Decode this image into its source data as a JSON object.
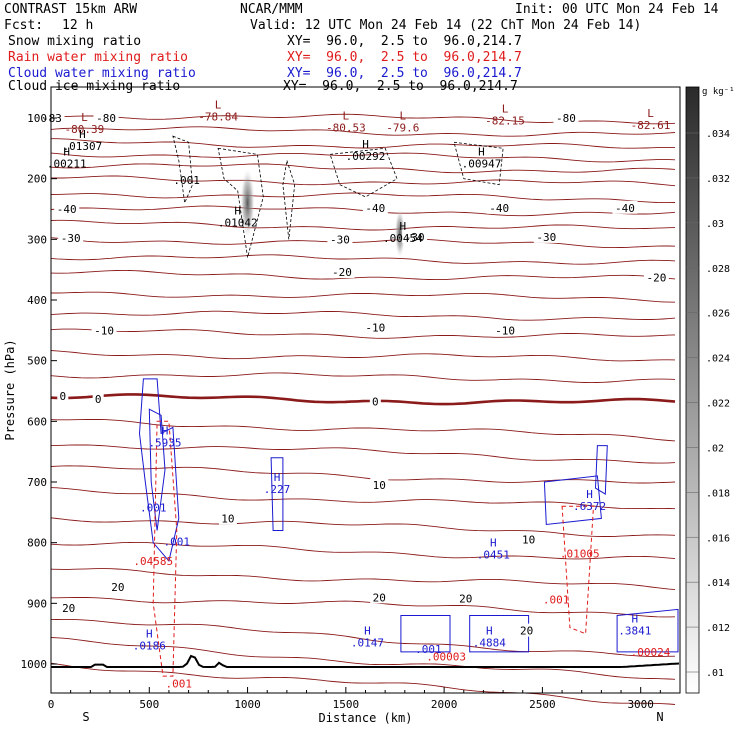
{
  "header": {
    "model": "CONTRAST 15km ARW",
    "org": "NCAR/MMM",
    "init": "Init: 00 UTC Mon 24 Feb 14",
    "fcst_label": "Fcst:",
    "fcst_value": "12 h",
    "valid": "Valid: 12 UTC Mon 24 Feb 14 (22 ChT Mon 24 Feb 14)"
  },
  "fields": [
    {
      "name": "Snow mixing ratio",
      "xy": "XY=  96.0,  2.5 to  96.0,214.7",
      "color": "#000000"
    },
    {
      "name": "Rain water mixing ratio",
      "xy": "XY=  96.0,  2.5 to  96.0,214.7",
      "color": "#e01b1b"
    },
    {
      "name": "Cloud water mixing ratio",
      "xy": "XY=  96.0,  2.5 to  96.0,214.7",
      "color": "#1a1ad0"
    },
    {
      "name": "Cloud ice mixing ratio",
      "xy": "XY=  96.0,  2.5 to  96.0,214.7",
      "color": "#000000"
    }
  ],
  "chart_data": {
    "type": "cross-section contour",
    "xlabel": "Distance (km)",
    "ylabel": "Pressure (hPa)",
    "xlim": [
      0,
      3200
    ],
    "ylim": [
      1050,
      60
    ],
    "x_ticks": [
      0,
      500,
      1000,
      1500,
      2000,
      2500,
      3000
    ],
    "y_ticks": [
      100,
      200,
      300,
      400,
      500,
      600,
      700,
      800,
      900,
      1000
    ],
    "x_end_labels": {
      "left": "S",
      "right": "N"
    },
    "colorbar": {
      "unit": "g kg⁻¹",
      "ticks": [
        ".034",
        ".032",
        ".03",
        ".028",
        ".026",
        ".024",
        ".022",
        ".02",
        ".018",
        ".016",
        ".014",
        ".012",
        ".01"
      ]
    },
    "temperature_labels": [
      {
        "x": 5,
        "p": 100,
        "text": "-83"
      },
      {
        "x": 280,
        "p": 100,
        "text": "-80"
      },
      {
        "x": 2620,
        "p": 100,
        "text": "-80"
      },
      {
        "x": 80,
        "p": 250,
        "text": "-40"
      },
      {
        "x": 1650,
        "p": 248,
        "text": "-40"
      },
      {
        "x": 2280,
        "p": 248,
        "text": "-40"
      },
      {
        "x": 2920,
        "p": 248,
        "text": "-40"
      },
      {
        "x": 100,
        "p": 298,
        "text": "-30"
      },
      {
        "x": 1470,
        "p": 300,
        "text": "-30"
      },
      {
        "x": 1850,
        "p": 296,
        "text": "-30"
      },
      {
        "x": 2520,
        "p": 296,
        "text": "-30"
      },
      {
        "x": 1480,
        "p": 354,
        "text": "-20"
      },
      {
        "x": 3080,
        "p": 363,
        "text": "-20"
      },
      {
        "x": 270,
        "p": 450,
        "text": "-10"
      },
      {
        "x": 1650,
        "p": 445,
        "text": "-10"
      },
      {
        "x": 2310,
        "p": 450,
        "text": "-10"
      },
      {
        "x": 60,
        "p": 558,
        "text": "0"
      },
      {
        "x": 240,
        "p": 563,
        "text": "0"
      },
      {
        "x": 1650,
        "p": 567,
        "text": "0"
      },
      {
        "x": 1670,
        "p": 705,
        "text": "10"
      },
      {
        "x": 900,
        "p": 760,
        "text": "10"
      },
      {
        "x": 2430,
        "p": 795,
        "text": "10"
      },
      {
        "x": 340,
        "p": 873,
        "text": "20"
      },
      {
        "x": 90,
        "p": 908,
        "text": "20"
      },
      {
        "x": 1670,
        "p": 890,
        "text": "20"
      },
      {
        "x": 2110,
        "p": 892,
        "text": "20"
      },
      {
        "x": 2420,
        "p": 945,
        "text": "20"
      }
    ],
    "extrema": [
      {
        "x": 170,
        "p": 108,
        "kind": "L",
        "value": "-80.39",
        "color": "#8b1a1a"
      },
      {
        "x": 850,
        "p": 88,
        "kind": "L",
        "value": "-78.84",
        "color": "#8b1a1a"
      },
      {
        "x": 1500,
        "p": 106,
        "kind": "L",
        "value": "-80.53",
        "color": "#8b1a1a"
      },
      {
        "x": 1790,
        "p": 106,
        "kind": "L",
        "value": "-79.6",
        "color": "#8b1a1a"
      },
      {
        "x": 2310,
        "p": 94,
        "kind": "L",
        "value": "-82.15",
        "color": "#8b1a1a"
      },
      {
        "x": 3050,
        "p": 102,
        "kind": "L",
        "value": "-82.61",
        "color": "#8b1a1a"
      },
      {
        "x": 160,
        "p": 136,
        "kind": "H",
        "value": ".01307",
        "color": "#000000"
      },
      {
        "x": 80,
        "p": 165,
        "kind": "H",
        "value": ".00211",
        "color": "#000000"
      },
      {
        "x": 690,
        "p": 192,
        "kind": "",
        "value": ".001",
        "color": "#000000"
      },
      {
        "x": 950,
        "p": 262,
        "kind": "H",
        "value": ".01042",
        "color": "#000000"
      },
      {
        "x": 1600,
        "p": 153,
        "kind": "H",
        "value": ".00292",
        "color": "#000000"
      },
      {
        "x": 1790,
        "p": 288,
        "kind": "H",
        "value": ".00454",
        "color": "#000000"
      },
      {
        "x": 2190,
        "p": 165,
        "kind": "H",
        "value": ".00947",
        "color": "#000000"
      },
      {
        "x": 580,
        "p": 625,
        "kind": "H",
        "value": ".5935",
        "color": "#1a1ad0"
      },
      {
        "x": 1150,
        "p": 702,
        "kind": "H",
        "value": ".227",
        "color": "#1a1ad0"
      },
      {
        "x": 520,
        "p": 732,
        "kind": "",
        "value": ".001",
        "color": "#1a1ad0"
      },
      {
        "x": 640,
        "p": 788,
        "kind": "",
        "value": ".001",
        "color": "#1a1ad0"
      },
      {
        "x": 520,
        "p": 820,
        "kind": "",
        "value": ".04585",
        "color": "#e01b1b"
      },
      {
        "x": 2250,
        "p": 810,
        "kind": "H",
        "value": ".0451",
        "color": "#1a1ad0"
      },
      {
        "x": 2740,
        "p": 730,
        "kind": "H",
        "value": ".6372",
        "color": "#1a1ad0"
      },
      {
        "x": 2690,
        "p": 808,
        "kind": "",
        "value": ".01005",
        "color": "#e01b1b"
      },
      {
        "x": 2570,
        "p": 884,
        "kind": "",
        "value": ".001",
        "color": "#e01b1b"
      },
      {
        "x": 500,
        "p": 960,
        "kind": "H",
        "value": ".0186",
        "color": "#1a1ad0"
      },
      {
        "x": 1610,
        "p": 955,
        "kind": "H",
        "value": ".0147",
        "color": "#1a1ad0"
      },
      {
        "x": 1920,
        "p": 965,
        "kind": "",
        "value": ".001",
        "color": "#1a1ad0"
      },
      {
        "x": 2010,
        "p": 978,
        "kind": "",
        "value": ".00003",
        "color": "#e01b1b"
      },
      {
        "x": 2230,
        "p": 955,
        "kind": "H",
        "value": ".4884",
        "color": "#1a1ad0"
      },
      {
        "x": 2970,
        "p": 935,
        "kind": "H",
        "value": ".3841",
        "color": "#1a1ad0"
      },
      {
        "x": 3050,
        "p": 970,
        "kind": "",
        "value": ".00024",
        "color": "#e01b1b"
      },
      {
        "x": 650,
        "p": 1022,
        "kind": "",
        "value": ".001",
        "color": "#e01b1b"
      }
    ]
  }
}
